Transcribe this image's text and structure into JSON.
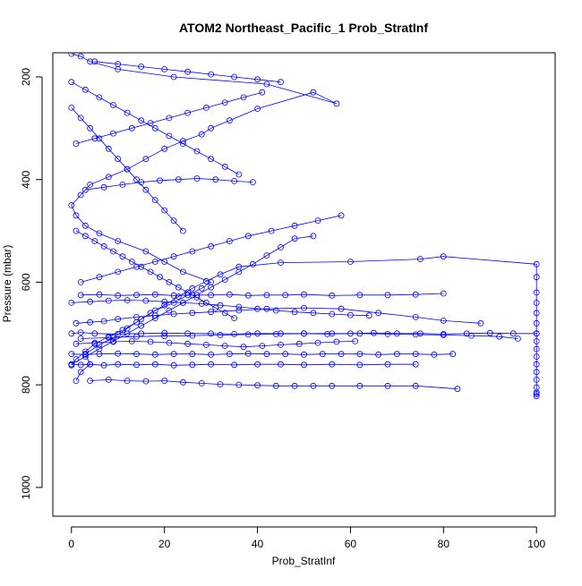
{
  "chart_data": {
    "type": "scatter",
    "title": "ATOM2 Northeast_Pacific_1 Prob_StratInf",
    "xlabel": "Prob_StratInf",
    "ylabel": "Pressure (mbar)",
    "xlim": [
      -4,
      104
    ],
    "ylim": [
      1056,
      153
    ],
    "y_reversed": true,
    "x_ticks": [
      0,
      20,
      40,
      60,
      80,
      100
    ],
    "y_ticks": [
      200,
      400,
      600,
      800,
      1000
    ],
    "series_color": "#0000ff",
    "marker": "open-circle",
    "connected": true,
    "series": [
      {
        "x": [
          1,
          2,
          4,
          3,
          6,
          9,
          12,
          15,
          18,
          22,
          25,
          28,
          30,
          24,
          20,
          16,
          10,
          6,
          3,
          1,
          0,
          2,
          4,
          8,
          12,
          16,
          20,
          24,
          28,
          30,
          34,
          40,
          52,
          57,
          42,
          22,
          10,
          4,
          2,
          0
        ],
        "y": [
          792,
          775,
          760,
          740,
          722,
          708,
          690,
          672,
          655,
          640,
          625,
          612,
          600,
          580,
          560,
          540,
          520,
          505,
          490,
          470,
          450,
          430,
          410,
          395,
          380,
          360,
          340,
          325,
          312,
          300,
          285,
          262,
          230,
          252,
          214,
          200,
          185,
          170,
          160,
          155
        ]
      },
      {
        "x": [
          0,
          1,
          3,
          5,
          8,
          11,
          14,
          17,
          20,
          23,
          26,
          29,
          32,
          36,
          45,
          60,
          75,
          80,
          100,
          100,
          100,
          100,
          100,
          100,
          100,
          100,
          100,
          100,
          100,
          100,
          100,
          100,
          100,
          100,
          100
        ],
        "y": [
          762,
          750,
          735,
          720,
          706,
          693,
          678,
          660,
          645,
          628,
          612,
          598,
          585,
          570,
          562,
          560,
          555,
          550,
          565,
          590,
          620,
          640,
          660,
          680,
          700,
          715,
          730,
          745,
          760,
          775,
          790,
          805,
          815,
          822,
          818
        ]
      },
      {
        "x": [
          0,
          2,
          5,
          10,
          15,
          20,
          25,
          30,
          35,
          40,
          45,
          50,
          55,
          60,
          65,
          70,
          75,
          80,
          85,
          90,
          95,
          100
        ],
        "y": [
          700,
          698,
          700,
          701,
          700,
          699,
          700,
          700,
          701,
          700,
          700,
          700,
          701,
          700,
          699,
          700,
          700,
          701,
          700,
          699,
          700,
          700
        ]
      },
      {
        "x": [
          0,
          3,
          6,
          10,
          14,
          18,
          22,
          26,
          30,
          34,
          38,
          42,
          46,
          50,
          54,
          58,
          62,
          66,
          70,
          74,
          78,
          82
        ],
        "y": [
          740,
          741,
          740,
          739,
          740,
          741,
          740,
          740,
          741,
          740,
          739,
          740,
          740,
          741,
          740,
          740,
          740,
          741,
          740,
          740,
          741,
          740
        ]
      },
      {
        "x": [
          0,
          2,
          4,
          7,
          10,
          14,
          18,
          22,
          26,
          30,
          35,
          40,
          45,
          50,
          56,
          62,
          68,
          74
        ],
        "y": [
          760,
          761,
          760,
          762,
          760,
          761,
          760,
          762,
          761,
          760,
          761,
          760,
          760,
          761,
          760,
          761,
          760,
          760
        ]
      },
      {
        "x": [
          4,
          8,
          12,
          16,
          20,
          24,
          28,
          32,
          36,
          40,
          44,
          48,
          52,
          56,
          62,
          68,
          74,
          83
        ],
        "y": [
          792,
          790,
          792,
          793,
          792,
          795,
          797,
          799,
          800,
          801,
          802,
          802,
          802,
          802,
          802,
          802,
          802,
          808
        ]
      },
      {
        "x": [
          2,
          6,
          10,
          14,
          18,
          22,
          26,
          30,
          34,
          38,
          42,
          46,
          50,
          56,
          62,
          68,
          74,
          80
        ],
        "y": [
          625,
          624,
          626,
          625,
          624,
          626,
          625,
          625,
          624,
          626,
          625,
          625,
          624,
          626,
          625,
          625,
          624,
          622
        ]
      },
      {
        "x": [
          1,
          4,
          7,
          10,
          14,
          18,
          22,
          26,
          30,
          36,
          42,
          50,
          58,
          66,
          74,
          80,
          88
        ],
        "y": [
          680,
          678,
          676,
          672,
          668,
          665,
          662,
          660,
          658,
          655,
          652,
          650,
          652,
          660,
          668,
          675,
          680
        ]
      },
      {
        "x": [
          0,
          3,
          6,
          9,
          12,
          15,
          18,
          21,
          24,
          27,
          30,
          33,
          36,
          39,
          42,
          45,
          48,
          52
        ],
        "y": [
          760,
          745,
          730,
          715,
          700,
          685,
          670,
          655,
          640,
          625,
          610,
          595,
          580,
          565,
          548,
          532,
          515,
          510
        ]
      },
      {
        "x": [
          1,
          5,
          9,
          13,
          17,
          21,
          25,
          29,
          33,
          37,
          41,
          45,
          49,
          53,
          57,
          61
        ],
        "y": [
          720,
          718,
          716,
          715,
          716,
          718,
          720,
          722,
          724,
          726,
          724,
          722,
          720,
          718,
          716,
          715
        ]
      },
      {
        "x": [
          2,
          6,
          10,
          14,
          18,
          22,
          26,
          30,
          34,
          38,
          43,
          48,
          53,
          58
        ],
        "y": [
          600,
          590,
          580,
          570,
          560,
          550,
          540,
          530,
          520,
          510,
          500,
          490,
          480,
          470
        ]
      },
      {
        "x": [
          3,
          7,
          11,
          15,
          19,
          23,
          27,
          31,
          35,
          39
        ],
        "y": [
          420,
          415,
          410,
          405,
          402,
          400,
          398,
          400,
          403,
          405
        ]
      },
      {
        "x": [
          1,
          5,
          9,
          13,
          17,
          21,
          25,
          29,
          33,
          37,
          41
        ],
        "y": [
          330,
          320,
          310,
          300,
          290,
          280,
          270,
          260,
          250,
          240,
          230
        ]
      },
      {
        "x": [
          0,
          4,
          8,
          12,
          16,
          20,
          24,
          28,
          32,
          36,
          40,
          44,
          48,
          52,
          56,
          60,
          64
        ],
        "y": [
          640,
          638,
          636,
          635,
          636,
          638,
          640,
          642,
          645,
          648,
          652,
          655,
          658,
          660,
          662,
          664,
          665
        ]
      },
      {
        "x": [
          2,
          8,
          14,
          20,
          26,
          32,
          38,
          44,
          50,
          56,
          62,
          68,
          74,
          80,
          86,
          92,
          96
        ],
        "y": [
          710,
          708,
          706,
          705,
          704,
          703,
          702,
          701,
          700,
          700,
          700,
          701,
          702,
          703,
          704,
          706,
          710
        ]
      },
      {
        "x": [
          0,
          3,
          6,
          9,
          12,
          15,
          18,
          21,
          24,
          27,
          30,
          33,
          36
        ],
        "y": [
          210,
          225,
          240,
          255,
          270,
          285,
          300,
          315,
          330,
          345,
          360,
          375,
          390
        ]
      },
      {
        "x": [
          5,
          10,
          15,
          20,
          25,
          30,
          35,
          40,
          45
        ],
        "y": [
          170,
          175,
          180,
          185,
          190,
          195,
          200,
          205,
          210
        ]
      },
      {
        "x": [
          0,
          2,
          4,
          6,
          8,
          10,
          12,
          14,
          16,
          18,
          20,
          22,
          24
        ],
        "y": [
          260,
          280,
          300,
          320,
          340,
          360,
          380,
          400,
          420,
          440,
          460,
          480,
          500
        ]
      },
      {
        "x": [
          1,
          3,
          5,
          7,
          9,
          11,
          13,
          15,
          17,
          19,
          21,
          23,
          25,
          27,
          29,
          31,
          33,
          35
        ],
        "y": [
          500,
          510,
          520,
          530,
          540,
          550,
          560,
          570,
          580,
          590,
          600,
          610,
          620,
          630,
          640,
          650,
          660,
          670
        ]
      }
    ]
  }
}
